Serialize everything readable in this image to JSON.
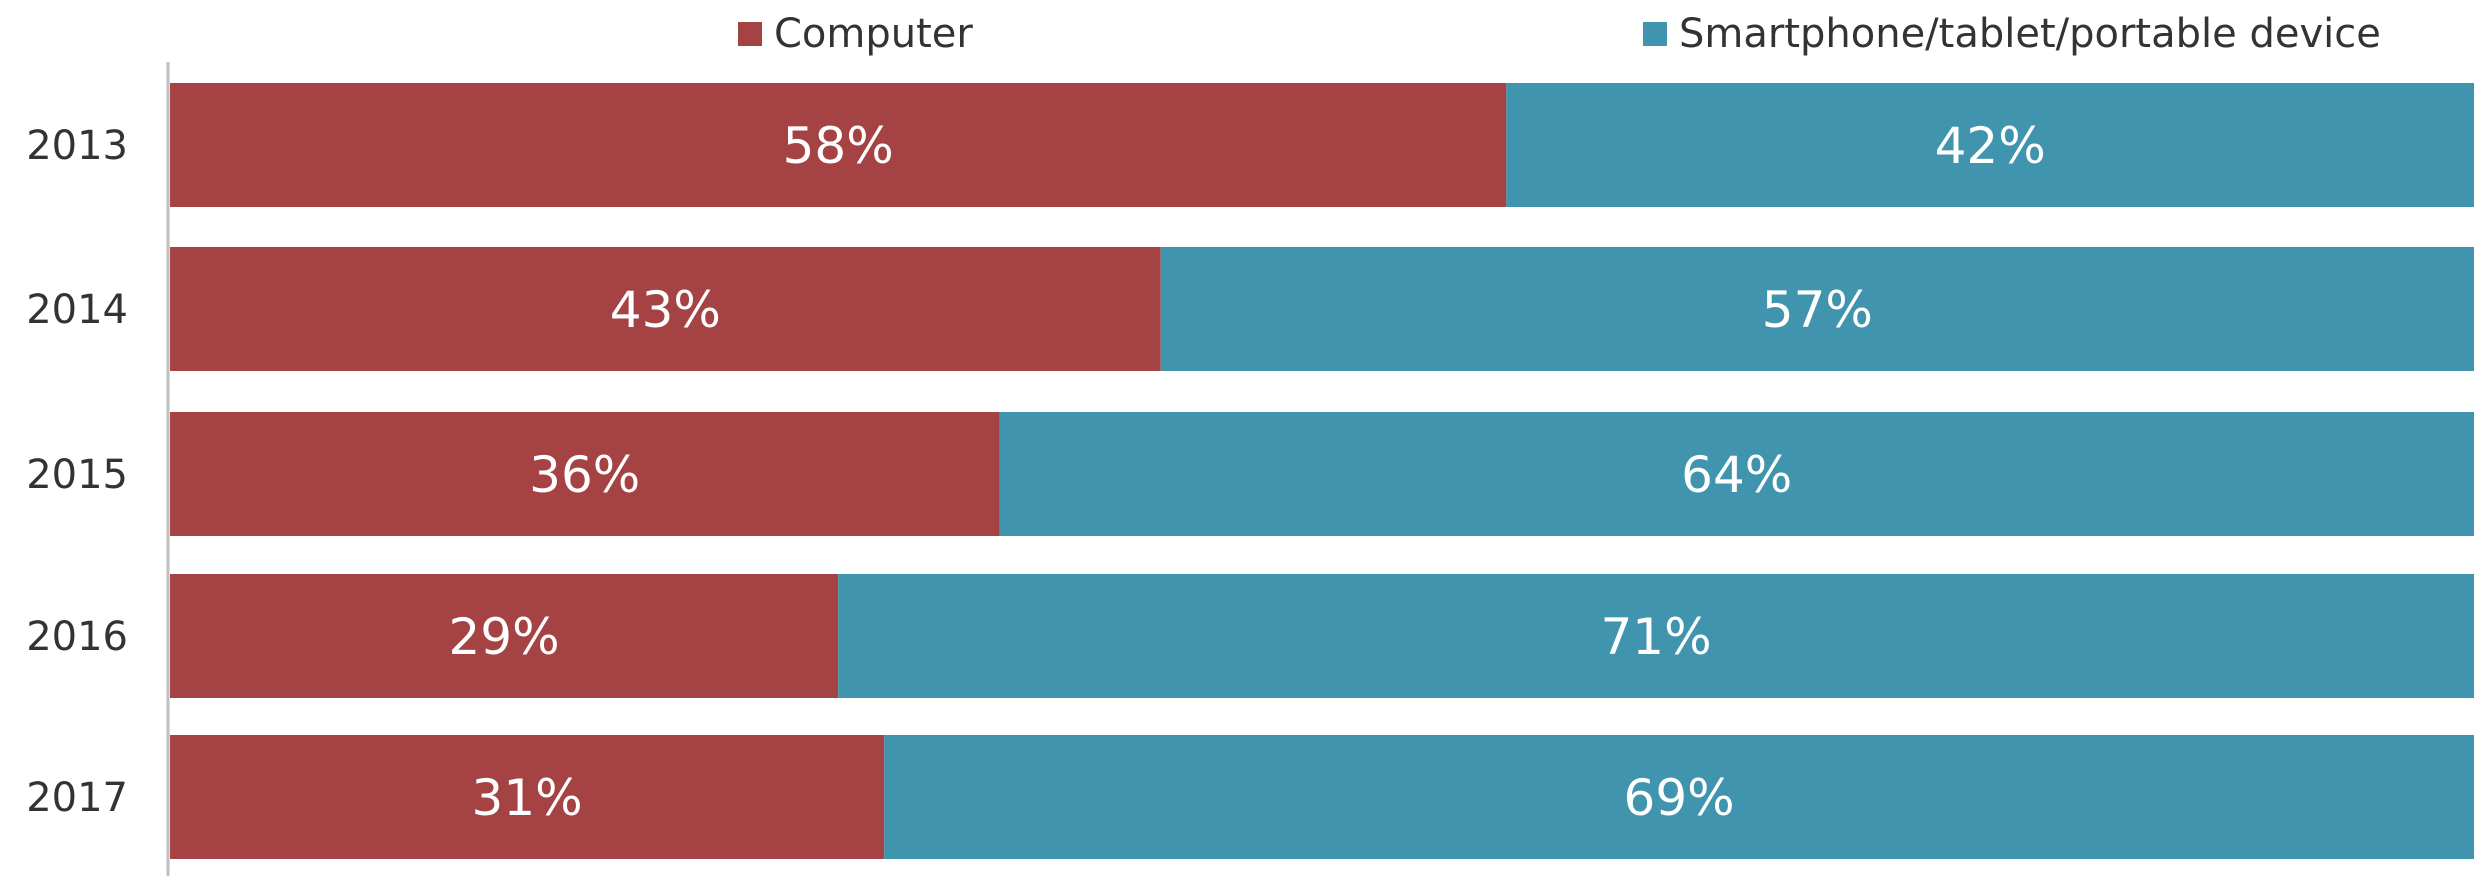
{
  "chart_data": {
    "type": "bar",
    "orientation": "horizontal",
    "stacked": true,
    "categories": [
      "2013",
      "2014",
      "2015",
      "2016",
      "2017"
    ],
    "series": [
      {
        "name": "Computer",
        "values": [
          58,
          43,
          36,
          29,
          31
        ],
        "labels": [
          "58%",
          "43%",
          "36%",
          "29%",
          "31%"
        ],
        "color": "#a54244"
      },
      {
        "name": "Smartphone/tablet/portable  device",
        "values": [
          42,
          57,
          64,
          71,
          69
        ],
        "labels": [
          "42%",
          "57%",
          "64%",
          "71%",
          "69%"
        ],
        "color": "#4094ae"
      }
    ],
    "xlim": [
      0,
      100
    ],
    "legend_position": "top",
    "grid": false
  }
}
